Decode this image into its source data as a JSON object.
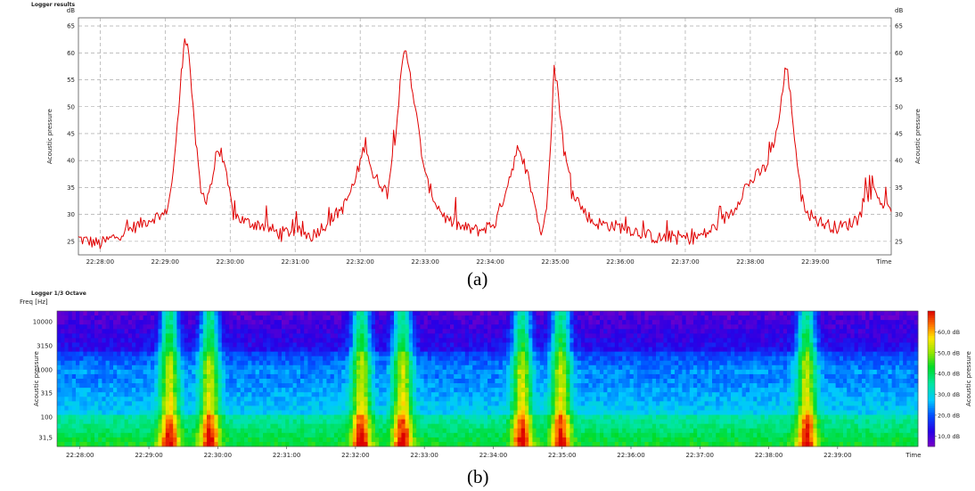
{
  "chart_data": [
    {
      "type": "line",
      "panel_title": "Logger results",
      "caption": "(a)",
      "ylabel_left": "Acoustic pressure",
      "ylabel_right": "Acoustic pressure",
      "unit_left": "dB",
      "unit_right": "dB",
      "xlabel": "Time",
      "ylim": [
        22.5,
        66.5
      ],
      "yticks": [
        25,
        30,
        35,
        40,
        45,
        50,
        55,
        60,
        65
      ],
      "xlim": [
        "22:27:40",
        "22:40:10"
      ],
      "xticks": [
        "22:28:00",
        "22:29:00",
        "22:30:00",
        "22:31:00",
        "22:32:00",
        "22:33:00",
        "22:34:00",
        "22:35:00",
        "22:36:00",
        "22:37:00",
        "22:38:00",
        "22:39:00"
      ],
      "grid": true,
      "series": [
        {
          "color": "#e00000",
          "points": [
            [
              "22:27:40",
              25.5
            ],
            [
              "22:27:50",
              25.0
            ],
            [
              "22:28:00",
              24.5
            ],
            [
              "22:28:10",
              25.5
            ],
            [
              "22:28:20",
              26.5
            ],
            [
              "22:28:30",
              27.5
            ],
            [
              "22:28:40",
              28.5
            ],
            [
              "22:28:50",
              29.5
            ],
            [
              "22:29:00",
              30.0
            ],
            [
              "22:29:05",
              34.0
            ],
            [
              "22:29:10",
              43.0
            ],
            [
              "22:29:15",
              56.0
            ],
            [
              "22:29:18",
              63.5
            ],
            [
              "22:29:22",
              60.0
            ],
            [
              "22:29:27",
              46.0
            ],
            [
              "22:29:33",
              34.0
            ],
            [
              "22:29:38",
              33.0
            ],
            [
              "22:29:43",
              36.0
            ],
            [
              "22:29:48",
              42.0
            ],
            [
              "22:29:53",
              40.0
            ],
            [
              "22:29:58",
              35.5
            ],
            [
              "22:30:03",
              30.0
            ],
            [
              "22:30:15",
              28.5
            ],
            [
              "22:30:30",
              28.0
            ],
            [
              "22:30:45",
              26.5
            ],
            [
              "22:31:00",
              27.0
            ],
            [
              "22:31:15",
              26.0
            ],
            [
              "22:31:30",
              28.5
            ],
            [
              "22:31:45",
              31.5
            ],
            [
              "22:31:55",
              36.0
            ],
            [
              "22:32:05",
              43.5
            ],
            [
              "22:32:12",
              37.0
            ],
            [
              "22:32:18",
              36.0
            ],
            [
              "22:32:25",
              34.0
            ],
            [
              "22:32:32",
              44.0
            ],
            [
              "22:32:38",
              56.0
            ],
            [
              "22:32:41",
              60.5
            ],
            [
              "22:32:45",
              58.0
            ],
            [
              "22:32:52",
              48.0
            ],
            [
              "22:33:00",
              37.0
            ],
            [
              "22:33:10",
              32.0
            ],
            [
              "22:33:20",
              29.0
            ],
            [
              "22:33:35",
              27.5
            ],
            [
              "22:33:50",
              27.0
            ],
            [
              "22:34:05",
              28.5
            ],
            [
              "22:34:15",
              35.0
            ],
            [
              "22:34:25",
              42.0
            ],
            [
              "22:34:35",
              37.0
            ],
            [
              "22:34:40",
              33.0
            ],
            [
              "22:34:45",
              28.0
            ],
            [
              "22:34:48",
              26.0
            ],
            [
              "22:34:52",
              32.0
            ],
            [
              "22:34:56",
              45.0
            ],
            [
              "22:34:59",
              57.5
            ],
            [
              "22:35:03",
              52.0
            ],
            [
              "22:35:08",
              42.0
            ],
            [
              "22:35:15",
              35.0
            ],
            [
              "22:35:25",
              31.0
            ],
            [
              "22:35:35",
              28.5
            ],
            [
              "22:35:50",
              28.0
            ],
            [
              "22:36:05",
              27.5
            ],
            [
              "22:36:20",
              26.5
            ],
            [
              "22:36:35",
              25.5
            ],
            [
              "22:36:50",
              26.0
            ],
            [
              "22:37:05",
              25.5
            ],
            [
              "22:37:20",
              26.5
            ],
            [
              "22:37:35",
              29.0
            ],
            [
              "22:37:45",
              31.0
            ],
            [
              "22:37:55",
              35.0
            ],
            [
              "22:38:05",
              37.0
            ],
            [
              "22:38:15",
              39.0
            ],
            [
              "22:38:25",
              46.0
            ],
            [
              "22:38:30",
              53.0
            ],
            [
              "22:38:33",
              58.0
            ],
            [
              "22:38:37",
              52.0
            ],
            [
              "22:38:42",
              42.0
            ],
            [
              "22:38:47",
              33.0
            ],
            [
              "22:38:55",
              30.0
            ],
            [
              "22:39:05",
              28.5
            ],
            [
              "22:39:20",
              27.5
            ],
            [
              "22:39:35",
              28.5
            ],
            [
              "22:39:45",
              33.0
            ],
            [
              "22:39:55",
              34.5
            ],
            [
              "22:40:05",
              31.0
            ],
            [
              "22:40:10",
              30.5
            ]
          ]
        }
      ]
    },
    {
      "type": "heatmap",
      "panel_title": "Logger 1/3 Octave",
      "caption": "(b)",
      "ylabel": "Freq [Hz]",
      "ylabel_left": "Acoustic pressure",
      "ylabel_right": "Acoustic pressure",
      "xlabel": "Time",
      "yticks": [
        "10000",
        "3150",
        "1000",
        "315",
        "100",
        "31,5"
      ],
      "xticks": [
        "22:28:00",
        "22:29:00",
        "22:30:00",
        "22:31:00",
        "22:32:00",
        "22:33:00",
        "22:34:00",
        "22:35:00",
        "22:36:00",
        "22:37:00",
        "22:38:00",
        "22:39:00"
      ],
      "colorbar_ticks": [
        "60,0 dB",
        "50,0 dB",
        "40,0 dB",
        "30,0 dB",
        "20,0 dB",
        "10,0 dB"
      ],
      "colorbar_range": [
        5,
        70
      ],
      "event_times": [
        "22:29:18",
        "22:29:53",
        "22:32:05",
        "22:32:41",
        "22:34:25",
        "22:34:59",
        "22:38:33"
      ]
    }
  ]
}
